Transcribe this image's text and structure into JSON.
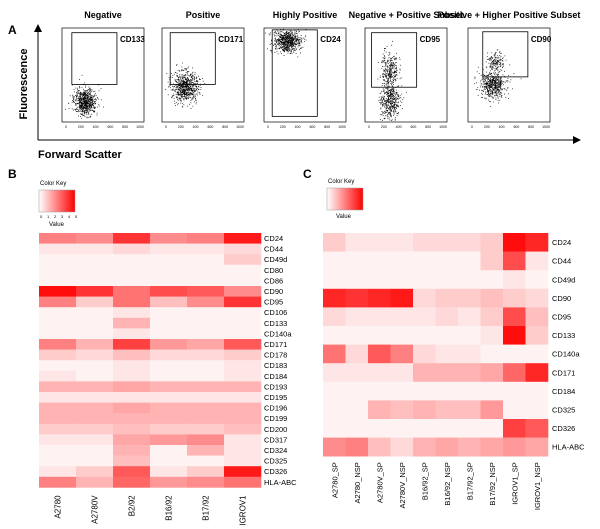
{
  "panels": {
    "a": {
      "label": "A",
      "y_axis_label": "Fluorescence",
      "x_axis_label": "Forward Scatter",
      "tick_labels": [
        "0",
        "200",
        "400",
        "600",
        "800",
        "1000"
      ],
      "plots": [
        {
          "title": "Negative",
          "marker": "CD133",
          "population": "low"
        },
        {
          "title": "Positive",
          "marker": "CD171",
          "population": "high"
        },
        {
          "title": "Highly Positive",
          "marker": "CD24",
          "population": "top"
        },
        {
          "title": "Negative + Positive Subset",
          "marker": "CD95",
          "population": "split"
        },
        {
          "title": "Positive + Higher Positive Subset",
          "marker": "CD90",
          "population": "mid_plus"
        }
      ]
    },
    "b": {
      "label": "B",
      "color_key_title": "Color Key",
      "value_label": "Value",
      "key_ticks": [
        "0",
        "1",
        "2",
        "3",
        "4",
        "5"
      ],
      "columns": [
        "A2780",
        "A2780V",
        "B2/92",
        "B16/92",
        "B17/92",
        "IGROV1"
      ],
      "rows": [
        "CD24",
        "CD44",
        "CD49d",
        "CD80",
        "CD86",
        "CD90",
        "CD95",
        "CD106",
        "CD133",
        "CD140a",
        "CD171",
        "CD178",
        "CD183",
        "CD184",
        "CD193",
        "CD195",
        "CD196",
        "CD199",
        "CD200",
        "CD317",
        "CD324",
        "CD325",
        "CD326",
        "HLA-ABC"
      ],
      "matrix": [
        [
          0.5,
          0.45,
          0.8,
          0.45,
          0.5,
          0.9
        ],
        [
          0.1,
          0.1,
          0.15,
          0.1,
          0.1,
          0.15
        ],
        [
          0.05,
          0.05,
          0.05,
          0.05,
          0.05,
          0.2
        ],
        [
          0.05,
          0.05,
          0.05,
          0.05,
          0.05,
          0.05
        ],
        [
          0.05,
          0.05,
          0.05,
          0.05,
          0.05,
          0.05
        ],
        [
          0.95,
          0.8,
          0.55,
          0.7,
          0.65,
          0.45
        ],
        [
          0.5,
          0.2,
          0.55,
          0.25,
          0.45,
          0.8
        ],
        [
          0.05,
          0.05,
          0.1,
          0.05,
          0.05,
          0.05
        ],
        [
          0.05,
          0.05,
          0.3,
          0.05,
          0.05,
          0.05
        ],
        [
          0.05,
          0.05,
          0.1,
          0.05,
          0.05,
          0.05
        ],
        [
          0.5,
          0.3,
          0.75,
          0.4,
          0.35,
          0.65
        ],
        [
          0.2,
          0.15,
          0.25,
          0.15,
          0.15,
          0.2
        ],
        [
          0.05,
          0.05,
          0.1,
          0.05,
          0.05,
          0.1
        ],
        [
          0.1,
          0.05,
          0.1,
          0.05,
          0.05,
          0.1
        ],
        [
          0.3,
          0.3,
          0.35,
          0.3,
          0.3,
          0.3
        ],
        [
          0.1,
          0.1,
          0.1,
          0.1,
          0.1,
          0.1
        ],
        [
          0.3,
          0.3,
          0.35,
          0.3,
          0.3,
          0.3
        ],
        [
          0.3,
          0.3,
          0.3,
          0.3,
          0.3,
          0.3
        ],
        [
          0.2,
          0.2,
          0.25,
          0.2,
          0.2,
          0.25
        ],
        [
          0.1,
          0.1,
          0.35,
          0.4,
          0.45,
          0.1
        ],
        [
          0.05,
          0.05,
          0.3,
          0.05,
          0.3,
          0.1
        ],
        [
          0.05,
          0.05,
          0.25,
          0.05,
          0.05,
          0.1
        ],
        [
          0.1,
          0.2,
          0.65,
          0.1,
          0.2,
          0.9
        ],
        [
          0.5,
          0.3,
          0.6,
          0.4,
          0.45,
          0.55
        ]
      ]
    },
    "c": {
      "label": "C",
      "color_key_title": "Color Key",
      "value_label": "Value",
      "columns": [
        "A2780_SP",
        "A2780_NSP",
        "A2780V_SP",
        "A2780V_NSP",
        "B16/92_SP",
        "B16/92_NSP",
        "B17/92_SP",
        "B17/92_NSP",
        "IGROV1_SP",
        "IGROV1_NSP"
      ],
      "rows": [
        "CD24",
        "CD44",
        "CD49d",
        "CD90",
        "CD95",
        "CD133",
        "CD140a",
        "CD171",
        "CD184",
        "CD325",
        "CD326",
        "HLA-ABC"
      ],
      "matrix": [
        [
          0.2,
          0.1,
          0.1,
          0.1,
          0.15,
          0.15,
          0.15,
          0.2,
          0.95,
          0.85
        ],
        [
          0.05,
          0.05,
          0.05,
          0.05,
          0.05,
          0.05,
          0.05,
          0.2,
          0.7,
          0.1
        ],
        [
          0.05,
          0.05,
          0.05,
          0.05,
          0.05,
          0.05,
          0.05,
          0.05,
          0.1,
          0.05
        ],
        [
          0.85,
          0.8,
          0.85,
          0.9,
          0.15,
          0.2,
          0.2,
          0.25,
          0.2,
          0.15
        ],
        [
          0.15,
          0.1,
          0.1,
          0.1,
          0.1,
          0.15,
          0.1,
          0.2,
          0.7,
          0.25
        ],
        [
          0.05,
          0.05,
          0.05,
          0.05,
          0.05,
          0.05,
          0.05,
          0.1,
          0.95,
          0.2
        ],
        [
          0.55,
          0.15,
          0.65,
          0.5,
          0.15,
          0.1,
          0.1,
          0.05,
          0.05,
          0.05
        ],
        [
          0.1,
          0.1,
          0.1,
          0.1,
          0.3,
          0.3,
          0.3,
          0.35,
          0.6,
          0.85
        ],
        [
          0.05,
          0.05,
          0.05,
          0.05,
          0.05,
          0.05,
          0.05,
          0.05,
          0.05,
          0.05
        ],
        [
          0.05,
          0.05,
          0.3,
          0.25,
          0.3,
          0.25,
          0.25,
          0.4,
          0.05,
          0.05
        ],
        [
          0.05,
          0.05,
          0.05,
          0.05,
          0.05,
          0.05,
          0.05,
          0.05,
          0.75,
          0.65
        ],
        [
          0.45,
          0.5,
          0.25,
          0.15,
          0.3,
          0.35,
          0.3,
          0.35,
          0.4,
          0.35
        ]
      ]
    }
  },
  "colors": {
    "low": "#ffffff",
    "high": "#ff0000",
    "dot": "#000000"
  }
}
